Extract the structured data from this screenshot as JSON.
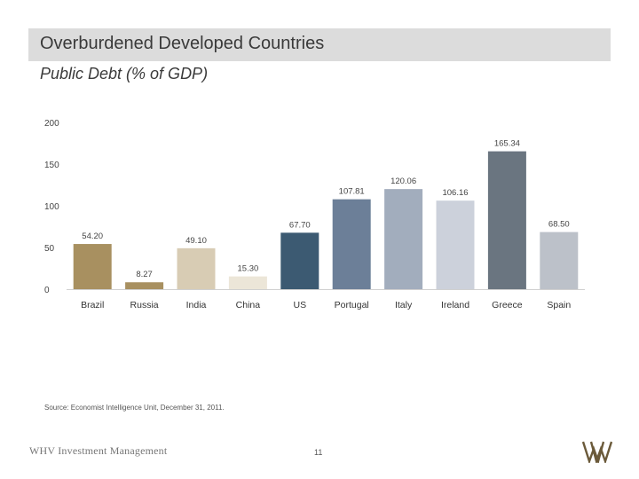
{
  "header": {
    "title": "Overburdened Developed Countries",
    "subtitle": "Public Debt (% of GDP)"
  },
  "chart_data": {
    "type": "bar",
    "title": "Public Debt (% of GDP)",
    "categories": [
      "Brazil",
      "Russia",
      "India",
      "China",
      "US",
      "Portugal",
      "Italy",
      "Ireland",
      "Greece",
      "Spain"
    ],
    "values": [
      54.2,
      8.27,
      49.1,
      15.3,
      67.7,
      107.81,
      120.06,
      106.16,
      165.34,
      68.5
    ],
    "labels": [
      "54.20",
      "8.27",
      "49.10",
      "15.30",
      "67.70",
      "107.81",
      "120.06",
      "106.16",
      "165.34",
      "68.50"
    ],
    "colors": [
      "#a89060",
      "#a89060",
      "#d8ccb4",
      "#ece6d8",
      "#3c5a72",
      "#6c7f98",
      "#a2adbd",
      "#ccd1db",
      "#6a7580",
      "#bcc1c9"
    ],
    "yticks": [
      0,
      50,
      100,
      150,
      200
    ],
    "ylim": [
      0,
      200
    ],
    "xlabel": "",
    "ylabel": ""
  },
  "footer": {
    "source": "Source: Economist Intelligence Unit, December 31, 2011.",
    "brand": "WHV Investment Management",
    "page_number": "11"
  }
}
